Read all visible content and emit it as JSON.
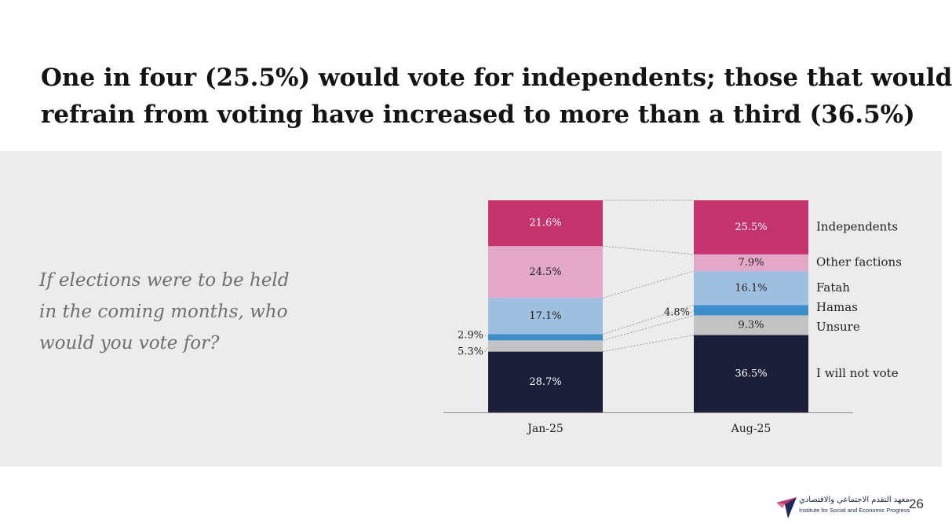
{
  "title": {
    "line1": "One in four (25.5%) would vote for independents; those that would",
    "line2": "refrain from voting have increased to more than a third (36.5%)"
  },
  "question": {
    "line1": "If elections were to be held",
    "line2": "in the coming months, who",
    "line3": "would you vote for?"
  },
  "chart_data": {
    "type": "bar",
    "stacked": true,
    "categories": [
      "Jan-25",
      "Aug-25"
    ],
    "series": [
      {
        "name": "I will not vote",
        "values": [
          28.7,
          36.5
        ],
        "color": "#1c1f3a",
        "labels": [
          "28.7%",
          "36.5%"
        ]
      },
      {
        "name": "Unsure",
        "values": [
          5.3,
          9.3
        ],
        "color": "#c3c3c3",
        "labels": [
          "5.3%",
          "9.3%"
        ]
      },
      {
        "name": "Hamas",
        "values": [
          2.9,
          4.8
        ],
        "color": "#3d8ec9",
        "labels": [
          "2.9%",
          "4.8%"
        ]
      },
      {
        "name": "Fatah",
        "values": [
          17.1,
          16.1
        ],
        "color": "#9fbfe1",
        "labels": [
          "17.1%",
          "16.1%"
        ]
      },
      {
        "name": "Other factions",
        "values": [
          24.5,
          7.9
        ],
        "color": "#e3a8c8",
        "labels": [
          "24.5%",
          "7.9%"
        ]
      },
      {
        "name": "Independents",
        "values": [
          21.6,
          25.5
        ],
        "color": "#c4336b",
        "labels": [
          "21.6%",
          "25.5%"
        ]
      }
    ],
    "ylim": [
      0,
      100
    ],
    "grid": false,
    "legend": "right"
  },
  "logo": {
    "arabic": "معهد التقدم الاجتماعي والاقتصادي",
    "english": "Institute for Social and Economic Progress"
  },
  "page_number": "26"
}
